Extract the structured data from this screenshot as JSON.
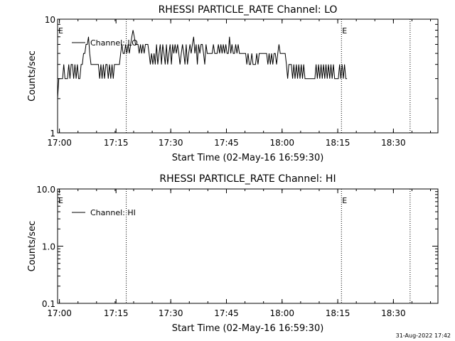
{
  "chart_data": [
    {
      "type": "line",
      "title": "RHESSI PARTICLE_RATE Channel: LO",
      "xlabel": "Start Time (02-May-16 16:59:30)",
      "ylabel": "Counts/sec",
      "yscale": "log",
      "ylim": [
        1,
        10
      ],
      "y_ticks": [
        1,
        10
      ],
      "y_tick_labels": [
        "1",
        "10"
      ],
      "xlim": [
        "16:59:30",
        "18:42:00"
      ],
      "x_ticks": [
        "17:00",
        "17:15",
        "17:30",
        "17:45",
        "18:00",
        "18:15",
        "18:30"
      ],
      "x_tick_minutes": [
        30,
        945,
        1830,
        2730,
        3630,
        4530,
        5430
      ],
      "grid": false,
      "legend": {
        "placement": "top-left",
        "entries": [
          "Channel: LO"
        ]
      },
      "markers": [
        {
          "label": "E",
          "time": "16:59:30"
        },
        {
          "label": "E",
          "time": "18:16:00"
        }
      ],
      "vlines": [
        "17:18:00",
        "18:16:00",
        "18:34:30"
      ],
      "series": [
        {
          "name": "Channel: LO",
          "x_start": "16:59:30",
          "x_step_seconds": 20,
          "values": [
            2,
            3,
            3,
            3,
            3,
            4,
            3,
            3,
            3,
            4,
            3,
            4,
            4,
            3,
            4,
            3,
            4,
            3,
            3,
            4,
            4,
            5,
            5,
            6,
            6,
            7,
            5,
            4,
            4,
            4,
            4,
            4,
            4,
            4,
            3,
            4,
            3,
            4,
            3,
            4,
            4,
            3,
            4,
            3,
            4,
            3,
            4,
            4,
            4,
            4,
            4,
            5,
            6,
            5,
            5,
            6,
            5,
            6,
            5,
            6,
            7,
            8,
            7,
            6,
            6,
            6,
            5,
            6,
            5,
            6,
            5,
            6,
            6,
            6,
            5,
            4,
            5,
            4,
            5,
            4,
            6,
            4,
            5,
            6,
            4,
            6,
            5,
            4,
            6,
            4,
            5,
            6,
            4,
            6,
            5,
            6,
            5,
            6,
            5,
            4,
            5,
            6,
            5,
            4,
            6,
            4,
            5,
            6,
            5,
            6,
            7,
            5,
            6,
            4,
            6,
            5,
            6,
            6,
            5,
            4,
            6,
            5,
            5,
            5,
            5,
            5,
            6,
            5,
            5,
            5,
            6,
            5,
            6,
            5,
            6,
            5,
            6,
            5,
            5,
            7,
            5,
            6,
            5,
            5,
            6,
            5,
            6,
            5,
            5,
            5,
            5,
            5,
            5,
            4,
            5,
            4,
            4,
            5,
            4,
            4,
            4,
            5,
            4,
            5,
            5,
            5,
            5,
            5,
            5,
            5,
            4,
            5,
            4,
            5,
            4,
            5,
            5,
            4,
            5,
            6,
            5,
            5,
            5,
            5,
            5,
            4,
            3,
            4,
            4,
            4,
            3,
            4,
            3,
            4,
            3,
            4,
            3,
            4,
            3,
            4,
            3,
            3,
            3,
            3,
            3,
            3,
            3,
            3,
            3,
            4,
            3,
            4,
            3,
            4,
            3,
            4,
            3,
            4,
            3,
            4,
            3,
            4,
            3,
            4,
            3,
            3,
            3,
            3,
            4,
            3,
            4,
            3,
            4,
            3,
            3
          ]
        }
      ]
    },
    {
      "type": "line",
      "title": "RHESSI PARTICLE_RATE Channel: HI",
      "xlabel": "Start Time (02-May-16 16:59:30)",
      "ylabel": "Counts/sec",
      "yscale": "log",
      "ylim": [
        0.1,
        10
      ],
      "y_ticks": [
        0.1,
        1,
        10
      ],
      "y_tick_labels": [
        "0.1",
        "1.0",
        "10.0"
      ],
      "xlim": [
        "16:59:30",
        "18:42:00"
      ],
      "x_ticks": [
        "17:00",
        "17:15",
        "17:30",
        "17:45",
        "18:00",
        "18:15",
        "18:30"
      ],
      "x_tick_minutes": [
        30,
        945,
        1830,
        2730,
        3630,
        4530,
        5430
      ],
      "grid": false,
      "legend": {
        "placement": "top-left",
        "entries": [
          "Channel: HI"
        ]
      },
      "markers": [
        {
          "label": "E",
          "time": "16:59:30"
        },
        {
          "label": "E",
          "time": "18:16:00"
        }
      ],
      "vlines": [
        "17:18:00",
        "18:16:00",
        "18:34:30"
      ],
      "series": [
        {
          "name": "Channel: HI",
          "values": []
        }
      ]
    }
  ],
  "footer": {
    "timestamp": "31-Aug-2022 17:42"
  }
}
